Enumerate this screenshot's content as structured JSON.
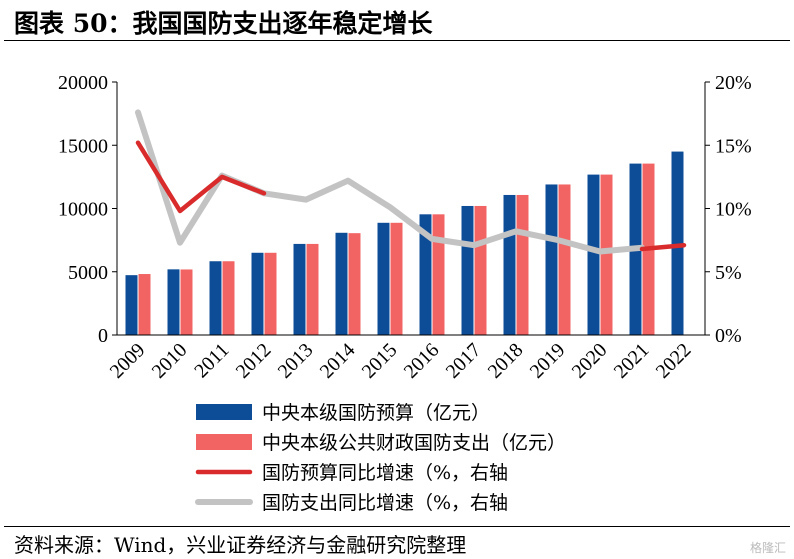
{
  "title": "图表 50：我国国防支出逐年稳定增长",
  "source": "资料来源：Wind，兴业证券经济与金融研究院整理",
  "watermark": "格隆汇",
  "colors": {
    "budget_bar": "#0D4C97",
    "spend_bar": "#F26464",
    "budget_growth": "#D92B2B",
    "spend_growth": "#C3C3C3"
  },
  "chart_data": {
    "type": "bar",
    "categories": [
      "2009",
      "2010",
      "2011",
      "2012",
      "2013",
      "2014",
      "2015",
      "2016",
      "2017",
      "2018",
      "2019",
      "2020",
      "2021",
      "2022"
    ],
    "left_axis": {
      "range": [
        0,
        20000
      ],
      "ticks": [
        "0",
        "5000",
        "10000",
        "15000",
        "20000"
      ]
    },
    "right_axis": {
      "range": [
        0,
        20
      ],
      "ticks": [
        "0%",
        "5%",
        "10%",
        "15%",
        "20%"
      ]
    },
    "series": [
      {
        "name": "中央本级国防预算（亿元）",
        "type": "bar",
        "axis": "left",
        "values": [
          4730,
          5190,
          5830,
          6500,
          7200,
          8080,
          8870,
          9540,
          10200,
          11070,
          11900,
          12680,
          13550,
          14500
        ]
      },
      {
        "name": "中央本级公共财政国防支出（亿元）",
        "type": "bar",
        "axis": "left",
        "values": [
          4820,
          5180,
          5830,
          6500,
          7200,
          8050,
          8870,
          9540,
          10200,
          11070,
          11900,
          12680,
          13550,
          null
        ]
      },
      {
        "name": "国防预算同比增速（%，右轴",
        "type": "line",
        "axis": "right",
        "values": [
          15.2,
          9.8,
          12.5,
          11.2,
          null,
          null,
          null,
          null,
          null,
          null,
          null,
          null,
          6.8,
          7.1
        ]
      },
      {
        "name": "国防支出同比增速（%，右轴",
        "type": "line",
        "axis": "right",
        "values": [
          17.6,
          7.3,
          12.6,
          11.2,
          10.7,
          12.2,
          10.1,
          7.6,
          7.1,
          8.2,
          7.5,
          6.6,
          6.9,
          null
        ]
      }
    ],
    "legend_position": "bottom"
  }
}
